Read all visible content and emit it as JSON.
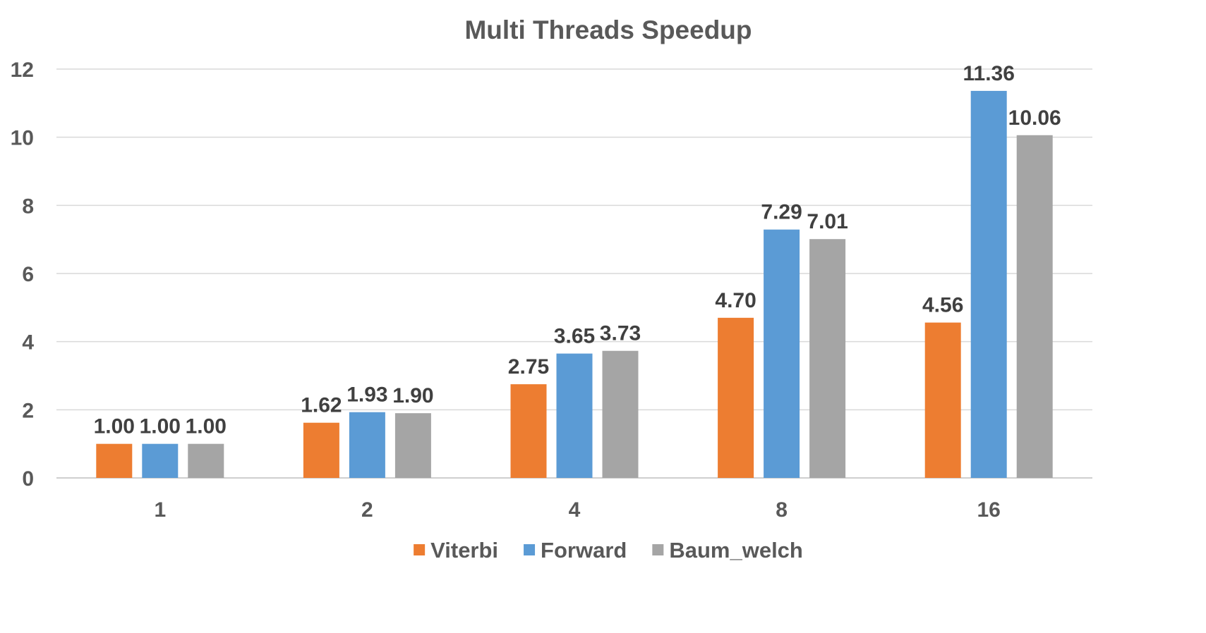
{
  "chart_data": {
    "type": "bar",
    "title": "Multi Threads Speedup",
    "xlabel": "",
    "ylabel": "",
    "categories": [
      "1",
      "2",
      "4",
      "8",
      "16"
    ],
    "series": [
      {
        "name": "Viterbi",
        "color": "#ED7D31",
        "values": [
          1.0,
          1.62,
          2.75,
          4.7,
          4.56
        ],
        "labels": [
          "1.00",
          "1.62",
          "2.75",
          "4.70",
          "4.56"
        ]
      },
      {
        "name": "Forward",
        "color": "#5B9BD5",
        "values": [
          1.0,
          1.93,
          3.65,
          7.29,
          11.36
        ],
        "labels": [
          "1.00",
          "1.93",
          "3.65",
          "7.29",
          "11.36"
        ]
      },
      {
        "name": "Baum_welch",
        "color": "#A5A5A5",
        "values": [
          1.0,
          1.9,
          3.73,
          7.01,
          10.06
        ],
        "labels": [
          "1.00",
          "1.90",
          "3.73",
          "7.01",
          "10.06"
        ]
      }
    ],
    "ylim": [
      0,
      12
    ],
    "yticks": [
      "0",
      "2",
      "4",
      "6",
      "8",
      "10",
      "12"
    ],
    "grid": true,
    "legend_position": "bottom"
  }
}
